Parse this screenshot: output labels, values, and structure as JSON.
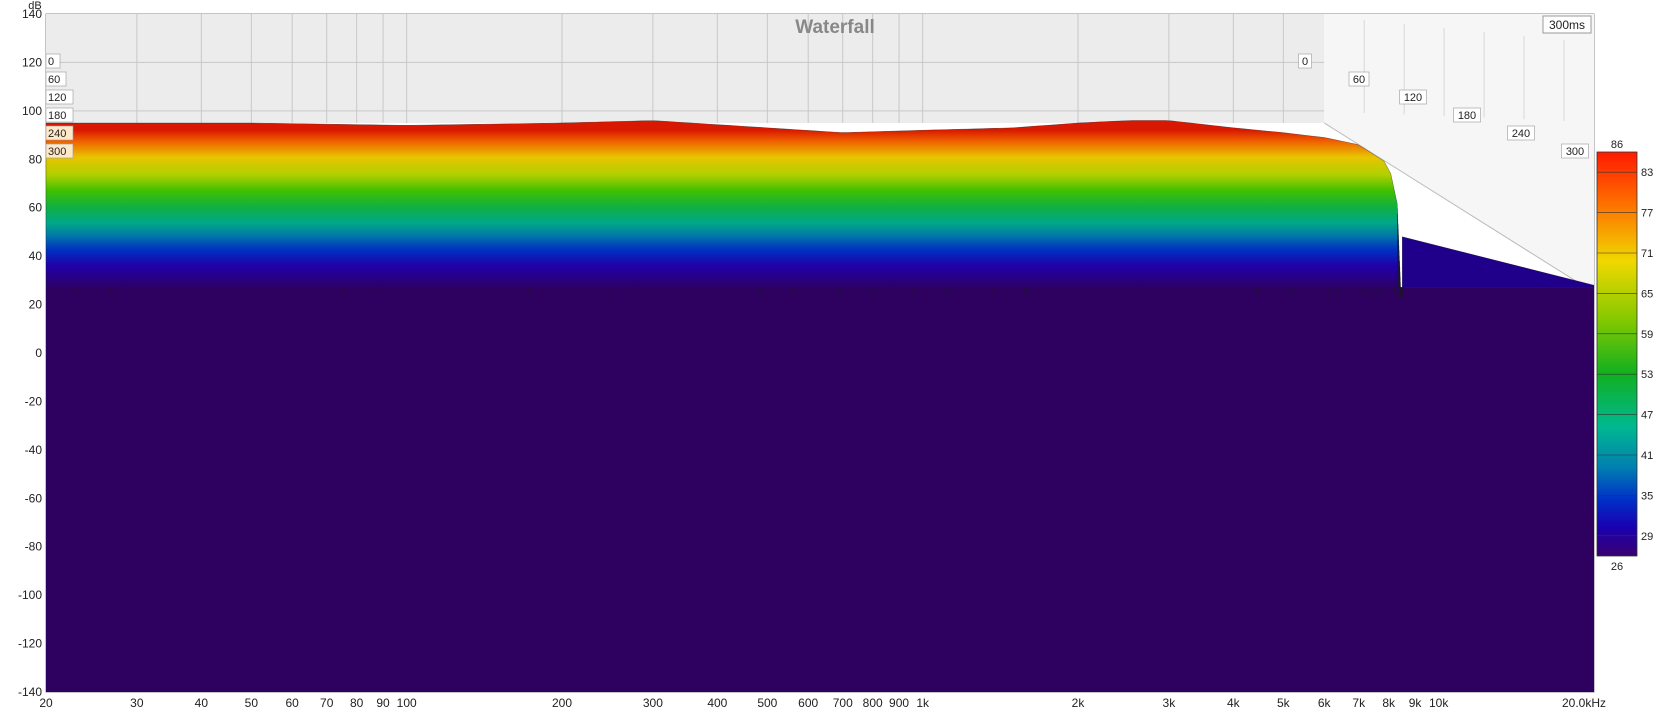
{
  "chart_data": {
    "type": "area",
    "title": "Waterfall",
    "ylabel": "dB",
    "time_badge": "300ms",
    "x_unit": "Hz",
    "x_scale": "log",
    "xlim": [
      20,
      20000
    ],
    "ylim": [
      -140,
      140
    ],
    "grid": true,
    "y_ticks": [
      140,
      120,
      100,
      80,
      60,
      40,
      20,
      0,
      -20,
      -40,
      -60,
      -80,
      -100,
      -120,
      -140
    ],
    "x_ticks": [
      {
        "v": 20,
        "t": "20"
      },
      {
        "v": 30,
        "t": "30"
      },
      {
        "v": 40,
        "t": "40"
      },
      {
        "v": 50,
        "t": "50"
      },
      {
        "v": 60,
        "t": "60"
      },
      {
        "v": 70,
        "t": "70"
      },
      {
        "v": 80,
        "t": "80"
      },
      {
        "v": 90,
        "t": "90"
      },
      {
        "v": 100,
        "t": "100"
      },
      {
        "v": 200,
        "t": "200"
      },
      {
        "v": 300,
        "t": "300"
      },
      {
        "v": 400,
        "t": "400"
      },
      {
        "v": 500,
        "t": "500"
      },
      {
        "v": 600,
        "t": "600"
      },
      {
        "v": 700,
        "t": "700"
      },
      {
        "v": 800,
        "t": "800"
      },
      {
        "v": 900,
        "t": "900"
      },
      {
        "v": 1000,
        "t": "1k"
      },
      {
        "v": 2000,
        "t": "2k"
      },
      {
        "v": 3000,
        "t": "3k"
      },
      {
        "v": 4000,
        "t": "4k"
      },
      {
        "v": 5000,
        "t": "5k"
      },
      {
        "v": 6000,
        "t": "6k"
      },
      {
        "v": 7000,
        "t": "7k"
      },
      {
        "v": 8000,
        "t": "8k"
      },
      {
        "v": 9000,
        "t": "9k"
      },
      {
        "v": 10000,
        "t": "10k"
      },
      {
        "v": 20000,
        "t": "20.0kHz"
      }
    ],
    "time_ticks_left": [
      "0",
      "60",
      "120",
      "180",
      "240",
      "300"
    ],
    "time_ticks_right": [
      "0",
      "60",
      "120",
      "180",
      "240",
      "300"
    ],
    "colorbar": {
      "min": 26,
      "max": 86,
      "ticks": [
        83,
        77,
        71,
        65,
        59,
        53,
        47,
        41,
        35,
        29
      ],
      "min_label": "26",
      "max_label": "86"
    },
    "series": [
      {
        "time_ms": 0,
        "points": [
          [
            20,
            95
          ],
          [
            30,
            95
          ],
          [
            50,
            95
          ],
          [
            100,
            94
          ],
          [
            200,
            95
          ],
          [
            300,
            96
          ],
          [
            500,
            93
          ],
          [
            700,
            91
          ],
          [
            1000,
            92
          ],
          [
            1500,
            93
          ],
          [
            2000,
            95
          ],
          [
            2500,
            96
          ],
          [
            3000,
            96
          ],
          [
            4000,
            93
          ],
          [
            5000,
            91
          ],
          [
            6000,
            89
          ],
          [
            7000,
            86
          ],
          [
            8000,
            78
          ],
          [
            8500,
            52
          ]
        ]
      }
    ],
    "floor_db": 27,
    "colors": {
      "floor": "#2e0060",
      "plot_bg": "#ffffff",
      "back_wall": "#ececec"
    }
  }
}
